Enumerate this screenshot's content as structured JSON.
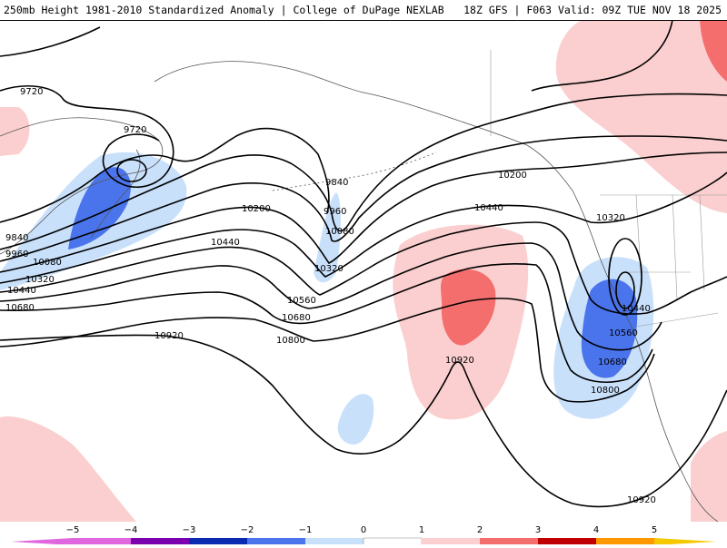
{
  "header": {
    "title": "250mb Height 1981-2010 Standardized Anomaly | College of DuPage NEXLAB",
    "run_info": "18Z GFS | F063 Valid: 09Z TUE NOV 18 2025"
  },
  "colors": {
    "neg5": "#e066e0",
    "neg4": "#7a00b0",
    "neg3": "#0a2ab0",
    "neg2": "#4a74ec",
    "neg1": "#c9e0fb",
    "zero_lo": "#ffffff",
    "zero_hi": "#ffffff",
    "pos1": "#fbcfcf",
    "pos2": "#f46e6e",
    "pos3": "#c00000",
    "pos4": "#ff9800",
    "pos5": "#f5c800"
  },
  "colorbar": {
    "labels": [
      "−5",
      "−4",
      "−3",
      "−2",
      "−1",
      "0",
      "1",
      "2",
      "3",
      "4",
      "5"
    ]
  },
  "contours": {
    "c9720a": "9720",
    "c9720b": "9720",
    "c9840a": "9840",
    "c9840b": "9840",
    "c9960a": "9960",
    "c9960b": "9960",
    "c10080a": "10080",
    "c10080b": "10080",
    "c10200a": "10200",
    "c10200b": "10200",
    "c10320a": "10320",
    "c10320b": "10320",
    "c10320c": "10320",
    "c10440a": "10440",
    "c10440b": "10440",
    "c10440c": "10440",
    "c10560a": "10560",
    "c10560b": "10560",
    "c10680a": "10680",
    "c10680b": "10680",
    "c10680c": "10680",
    "c10800a": "10800",
    "c10800b": "10800",
    "c10920a": "10920",
    "c10920b": "10920",
    "c10920c": "10920"
  }
}
